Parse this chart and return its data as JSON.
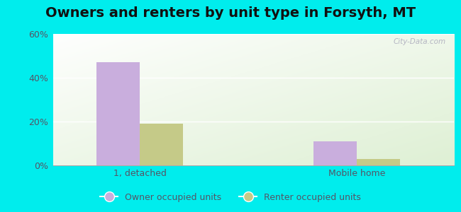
{
  "title": "Owners and renters by unit type in Forsyth, MT",
  "categories": [
    "1, detached",
    "Mobile home"
  ],
  "owner_values": [
    47,
    11
  ],
  "renter_values": [
    19,
    3
  ],
  "owner_color": "#c9aedd",
  "renter_color": "#c5ca88",
  "ylim": [
    0,
    60
  ],
  "yticks": [
    0,
    20,
    40,
    60
  ],
  "yticklabels": [
    "0%",
    "20%",
    "40%",
    "60%"
  ],
  "bar_width": 0.4,
  "group_positions": [
    1.0,
    3.0
  ],
  "outer_background": "#00eded",
  "watermark": "City-Data.com",
  "legend_owner": "Owner occupied units",
  "legend_renter": "Renter occupied units",
  "title_fontsize": 14,
  "tick_fontsize": 9,
  "label_color": "#555566"
}
